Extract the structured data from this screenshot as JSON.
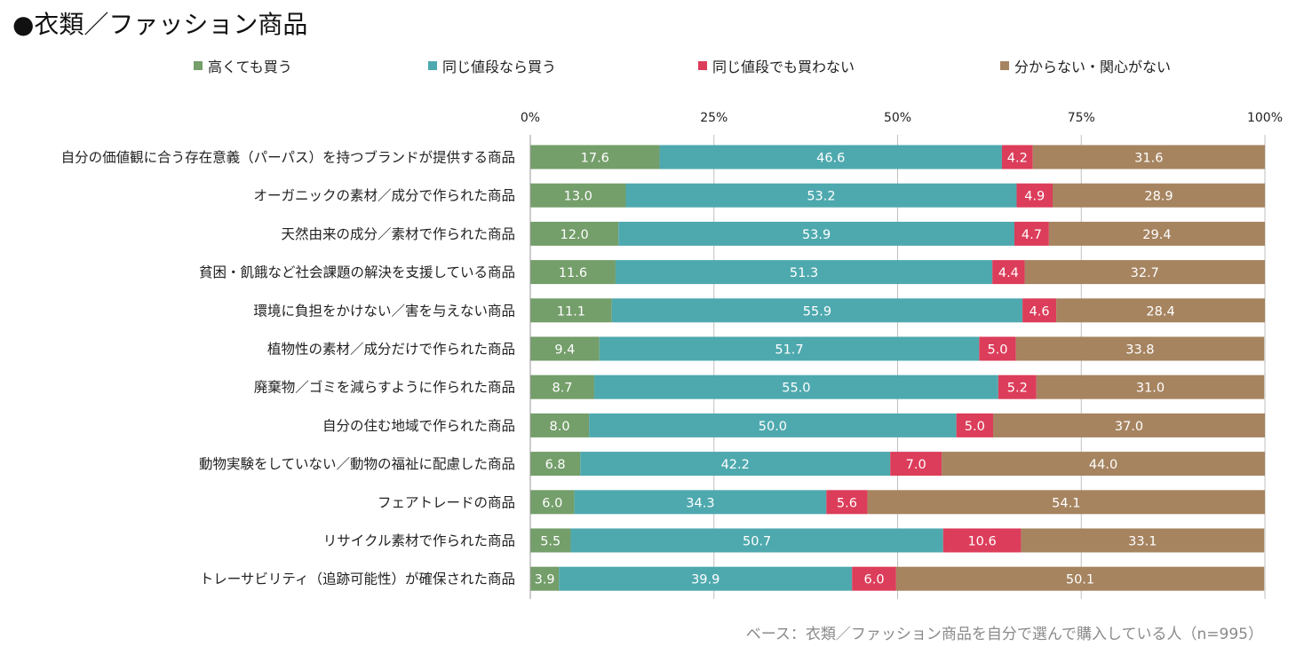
{
  "title": "●衣類／ファッション商品",
  "source_note": "ベース：衣類／ファッション商品を自分で選んで購入している人（n=995）",
  "colors": {
    "buy_even_if_expensive": "#749e6a",
    "buy_if_same_price": "#4ea9ae",
    "not_buy_even_same_price": "#dc3d5a",
    "unknown_no_interest": "#a68460",
    "grid": "#bfbfbf",
    "value_label": "#ffffff"
  },
  "chart_data": {
    "type": "bar",
    "orientation": "horizontal",
    "stacked": true,
    "xlim": [
      0,
      100
    ],
    "x_ticks": [
      "0%",
      "25%",
      "50%",
      "75%",
      "100%"
    ],
    "x_tick_values": [
      0,
      25,
      50,
      75,
      100
    ],
    "legend_position": "top",
    "grid": true,
    "categories": [
      "自分の価値観に合う存在意義（パーパス）を持つブランドが提供する商品",
      "オーガニックの素材／成分で作られた商品",
      "天然由来の成分／素材で作られた商品",
      "貧困・飢餓など社会課題の解決を支援している商品",
      "環境に負担をかけない／害を与えない商品",
      "植物性の素材／成分だけで作られた商品",
      "廃棄物／ゴミを減らすように作られた商品",
      "自分の住む地域で作られた商品",
      "動物実験をしていない／動物の福祉に配慮した商品",
      "フェアトレードの商品",
      "リサイクル素材で作られた商品",
      "トレーサビリティ（追跡可能性）が確保された商品"
    ],
    "series": [
      {
        "name": "高くても買う",
        "color_key": "buy_even_if_expensive",
        "values": [
          17.6,
          13.0,
          12.0,
          11.6,
          11.1,
          9.4,
          8.7,
          8.0,
          6.8,
          6.0,
          5.5,
          3.9
        ]
      },
      {
        "name": "同じ値段なら買う",
        "color_key": "buy_if_same_price",
        "values": [
          46.6,
          53.2,
          53.9,
          51.3,
          55.9,
          51.7,
          55.0,
          50.0,
          42.2,
          34.3,
          50.7,
          39.9
        ]
      },
      {
        "name": "同じ値段でも買わない",
        "color_key": "not_buy_even_same_price",
        "values": [
          4.2,
          4.9,
          4.7,
          4.4,
          4.6,
          5.0,
          5.2,
          5.0,
          7.0,
          5.6,
          10.6,
          6.0
        ]
      },
      {
        "name": "分からない・関心がない",
        "color_key": "unknown_no_interest",
        "values": [
          31.6,
          28.9,
          29.4,
          32.7,
          28.4,
          33.8,
          31.0,
          37.0,
          44.0,
          54.1,
          33.1,
          50.1
        ]
      }
    ]
  }
}
